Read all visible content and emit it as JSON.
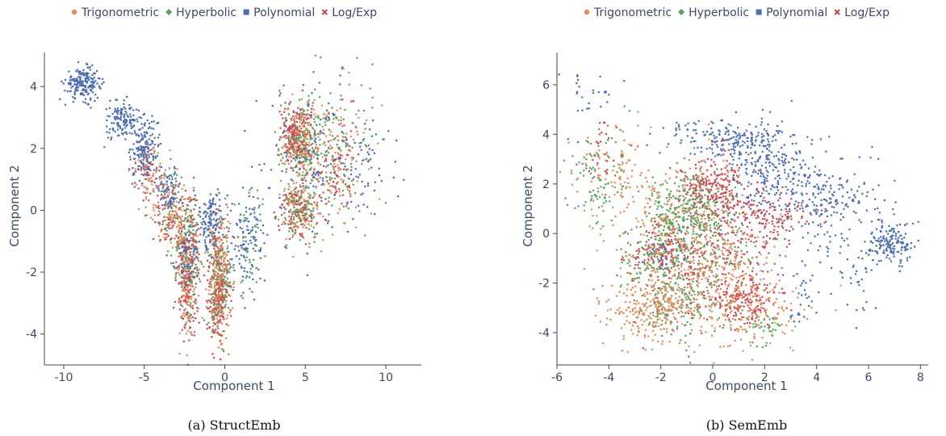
{
  "colors": {
    "Trigonometric": "#e08b5a",
    "Hyperbolic": "#5aa35a",
    "Polynomial": "#4a6db0",
    "Log/Exp": "#cc4a4f",
    "text": "#3b4a66"
  },
  "legend": {
    "items": [
      {
        "name": "Trigonometric",
        "marker": "circle",
        "color_key": "Trigonometric"
      },
      {
        "name": "Hyperbolic",
        "marker": "diamond",
        "color_key": "Hyperbolic"
      },
      {
        "name": "Polynomial",
        "marker": "square",
        "color_key": "Polynomial"
      },
      {
        "name": "Log/Exp",
        "marker": "cross",
        "color_key": "Log/Exp"
      }
    ]
  },
  "chart_data": [
    {
      "type": "scatter",
      "caption": "(a) StructEmb",
      "xlabel": "Component 1",
      "ylabel": "Component 2",
      "xlim": [
        -11.2,
        12.2
      ],
      "ylim": [
        -5.0,
        5.1
      ],
      "xticks": [
        "-10",
        "-5",
        "0",
        "5",
        "10"
      ],
      "xtick_values": [
        -10,
        -5,
        0,
        5,
        10
      ],
      "yticks": [
        "-4",
        "-2",
        "0",
        "2",
        "4"
      ],
      "ytick_values": [
        -4,
        -2,
        0,
        2,
        4
      ],
      "legend_placement": "top",
      "grid": false,
      "series": [
        {
          "name": "Polynomial",
          "color_key": "Polynomial",
          "clusters": [
            {
              "x": -8.8,
              "y": 4.1,
              "sx": 0.55,
              "sy": 0.25,
              "n": 200
            },
            {
              "x": -6.3,
              "y": 2.9,
              "sx": 0.6,
              "sy": 0.3,
              "n": 130
            },
            {
              "x": -5.0,
              "y": 2.0,
              "sx": 0.4,
              "sy": 0.5,
              "n": 170
            },
            {
              "x": -3.5,
              "y": 0.6,
              "sx": 0.4,
              "sy": 0.4,
              "n": 80
            },
            {
              "x": -2.3,
              "y": -1.5,
              "sx": 0.35,
              "sy": 0.6,
              "n": 90
            },
            {
              "x": -0.8,
              "y": -0.3,
              "sx": 0.35,
              "sy": 0.5,
              "n": 130
            },
            {
              "x": 1.4,
              "y": -1.0,
              "sx": 0.5,
              "sy": 0.9,
              "n": 120
            },
            {
              "x": 5.6,
              "y": 1.5,
              "sx": 1.6,
              "sy": 1.2,
              "n": 170
            },
            {
              "x": 9.0,
              "y": 1.5,
              "sx": 1.0,
              "sy": 0.8,
              "n": 40
            }
          ]
        },
        {
          "name": "Trigonometric",
          "color_key": "Trigonometric",
          "clusters": [
            {
              "x": -4.5,
              "y": 1.0,
              "sx": 0.7,
              "sy": 0.6,
              "n": 60
            },
            {
              "x": -3.2,
              "y": -0.2,
              "sx": 0.6,
              "sy": 0.6,
              "n": 90
            },
            {
              "x": -2.3,
              "y": -2.0,
              "sx": 0.35,
              "sy": 1.0,
              "n": 150
            },
            {
              "x": -0.3,
              "y": -2.3,
              "sx": 0.35,
              "sy": 1.0,
              "n": 200
            },
            {
              "x": 4.6,
              "y": 2.3,
              "sx": 0.6,
              "sy": 0.5,
              "n": 160
            },
            {
              "x": 4.6,
              "y": 0.1,
              "sx": 0.6,
              "sy": 0.5,
              "n": 110
            },
            {
              "x": 7.0,
              "y": 1.7,
              "sx": 0.9,
              "sy": 1.2,
              "n": 110
            }
          ]
        },
        {
          "name": "Hyperbolic",
          "color_key": "Hyperbolic",
          "clusters": [
            {
              "x": -3.0,
              "y": 0.0,
              "sx": 0.7,
              "sy": 0.7,
              "n": 60
            },
            {
              "x": -2.2,
              "y": -1.7,
              "sx": 0.4,
              "sy": 1.0,
              "n": 100
            },
            {
              "x": -0.3,
              "y": -2.3,
              "sx": 0.35,
              "sy": 0.9,
              "n": 150
            },
            {
              "x": 1.4,
              "y": -1.0,
              "sx": 0.5,
              "sy": 0.9,
              "n": 40
            },
            {
              "x": 4.7,
              "y": 2.2,
              "sx": 0.6,
              "sy": 0.6,
              "n": 140
            },
            {
              "x": 4.7,
              "y": 0.1,
              "sx": 0.6,
              "sy": 0.6,
              "n": 100
            },
            {
              "x": 7.3,
              "y": 1.8,
              "sx": 1.0,
              "sy": 1.3,
              "n": 110
            }
          ]
        },
        {
          "name": "Log/Exp",
          "color_key": "Log/Exp",
          "clusters": [
            {
              "x": -4.7,
              "y": 1.3,
              "sx": 0.6,
              "sy": 0.5,
              "n": 50
            },
            {
              "x": -3.3,
              "y": -0.2,
              "sx": 0.6,
              "sy": 0.6,
              "n": 70
            },
            {
              "x": -2.3,
              "y": -1.9,
              "sx": 0.35,
              "sy": 1.1,
              "n": 180
            },
            {
              "x": -0.4,
              "y": -2.6,
              "sx": 0.35,
              "sy": 1.0,
              "n": 200
            },
            {
              "x": 4.4,
              "y": 2.4,
              "sx": 0.5,
              "sy": 0.5,
              "n": 180
            },
            {
              "x": 4.6,
              "y": 0.1,
              "sx": 0.6,
              "sy": 0.5,
              "n": 100
            },
            {
              "x": 6.9,
              "y": 1.2,
              "sx": 0.8,
              "sy": 1.0,
              "n": 80
            }
          ]
        }
      ]
    },
    {
      "type": "scatter",
      "caption": "(b) SemEmb",
      "xlabel": "Component 1",
      "ylabel": "Component 2",
      "xlim": [
        -6.0,
        8.3
      ],
      "ylim": [
        -5.3,
        7.3
      ],
      "xticks": [
        "-6",
        "-4",
        "-2",
        "0",
        "2",
        "4",
        "6",
        "8"
      ],
      "xtick_values": [
        -6,
        -4,
        -2,
        0,
        2,
        4,
        6,
        8
      ],
      "yticks": [
        "-4",
        "-2",
        "0",
        "2",
        "4",
        "6"
      ],
      "ytick_values": [
        -4,
        -2,
        0,
        2,
        4,
        6
      ],
      "legend_placement": "top",
      "grid": false,
      "series": [
        {
          "name": "Polynomial",
          "color_key": "Polynomial",
          "clusters": [
            {
              "x": -4.7,
              "y": 5.8,
              "sx": 0.5,
              "sy": 0.5,
              "n": 25
            },
            {
              "x": 0.5,
              "y": 3.9,
              "sx": 1.2,
              "sy": 0.4,
              "n": 180
            },
            {
              "x": 2.3,
              "y": 2.5,
              "sx": 0.8,
              "sy": 0.9,
              "n": 230
            },
            {
              "x": 4.5,
              "y": 1.2,
              "sx": 1.2,
              "sy": 0.9,
              "n": 220
            },
            {
              "x": 6.8,
              "y": -0.4,
              "sx": 0.4,
              "sy": 0.4,
              "n": 150
            },
            {
              "x": 5.5,
              "y": -1.8,
              "sx": 0.6,
              "sy": 0.9,
              "n": 40
            },
            {
              "x": 3.5,
              "y": -2.4,
              "sx": 0.4,
              "sy": 0.6,
              "n": 30
            },
            {
              "x": -1.8,
              "y": -0.8,
              "sx": 0.4,
              "sy": 0.4,
              "n": 40
            }
          ]
        },
        {
          "name": "Trigonometric",
          "color_key": "Trigonometric",
          "clusters": [
            {
              "x": -3.8,
              "y": 2.4,
              "sx": 0.8,
              "sy": 1.0,
              "n": 90
            },
            {
              "x": -2.3,
              "y": -3.1,
              "sx": 0.9,
              "sy": 0.6,
              "n": 260
            },
            {
              "x": -0.5,
              "y": -1.5,
              "sx": 1.3,
              "sy": 1.2,
              "n": 340
            },
            {
              "x": 1.5,
              "y": -3.0,
              "sx": 1.0,
              "sy": 0.8,
              "n": 160
            },
            {
              "x": -1.5,
              "y": 1.0,
              "sx": 1.2,
              "sy": 1.2,
              "n": 160
            }
          ]
        },
        {
          "name": "Hyperbolic",
          "color_key": "Hyperbolic",
          "clusters": [
            {
              "x": -4.5,
              "y": 2.4,
              "sx": 0.6,
              "sy": 0.9,
              "n": 90
            },
            {
              "x": -1.0,
              "y": 0.9,
              "sx": 0.8,
              "sy": 0.9,
              "n": 340
            },
            {
              "x": -2.2,
              "y": -1.0,
              "sx": 0.6,
              "sy": 0.6,
              "n": 110
            },
            {
              "x": -1.2,
              "y": -2.8,
              "sx": 0.9,
              "sy": 0.7,
              "n": 130
            },
            {
              "x": 2.0,
              "y": -3.7,
              "sx": 0.4,
              "sy": 0.4,
              "n": 40
            },
            {
              "x": 0.3,
              "y": -1.0,
              "sx": 1.0,
              "sy": 0.8,
              "n": 80
            }
          ]
        },
        {
          "name": "Log/Exp",
          "color_key": "Log/Exp",
          "clusters": [
            {
              "x": -4.2,
              "y": 3.3,
              "sx": 0.5,
              "sy": 0.6,
              "n": 30
            },
            {
              "x": 0.0,
              "y": 1.9,
              "sx": 0.6,
              "sy": 0.6,
              "n": 220
            },
            {
              "x": 1.4,
              "y": 0.5,
              "sx": 0.8,
              "sy": 0.8,
              "n": 130
            },
            {
              "x": -2.0,
              "y": -0.8,
              "sx": 0.6,
              "sy": 0.6,
              "n": 110
            },
            {
              "x": 1.2,
              "y": -2.7,
              "sx": 0.7,
              "sy": 0.5,
              "n": 150
            },
            {
              "x": 2.8,
              "y": 0.6,
              "sx": 0.6,
              "sy": 0.5,
              "n": 60
            },
            {
              "x": -0.5,
              "y": -1.2,
              "sx": 1.2,
              "sy": 1.2,
              "n": 180
            }
          ]
        }
      ]
    }
  ]
}
